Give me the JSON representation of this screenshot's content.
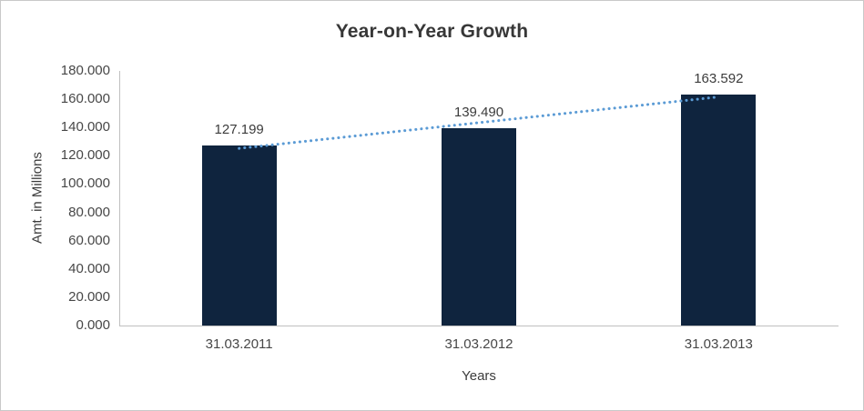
{
  "frame": {
    "background": "#ffffff",
    "border_color": "#c9c9c9"
  },
  "chart_data": {
    "type": "bar",
    "title": "Year-on-Year Growth",
    "xlabel": "Years",
    "ylabel": "Amt. in Millions",
    "categories": [
      "31.03.2011",
      "31.03.2012",
      "31.03.2013"
    ],
    "series": [
      {
        "name": "Amt. in Millions",
        "values": [
          127.199,
          139.49,
          163.592
        ]
      }
    ],
    "data_labels": [
      "127.199",
      "139.490",
      "163.592"
    ],
    "ylim": [
      0,
      180
    ],
    "ytick_step": 20,
    "ytick_labels": [
      "0.000",
      "20.000",
      "40.000",
      "60.000",
      "80.000",
      "100.000",
      "120.000",
      "140.000",
      "160.000",
      "180.000"
    ],
    "grid": false,
    "legend": "none",
    "bar_color": "#0F243E",
    "axis_line_color": "#bfbfbf",
    "trendline": {
      "type": "linear",
      "color": "#5B9BD5",
      "style": "dotted"
    }
  }
}
